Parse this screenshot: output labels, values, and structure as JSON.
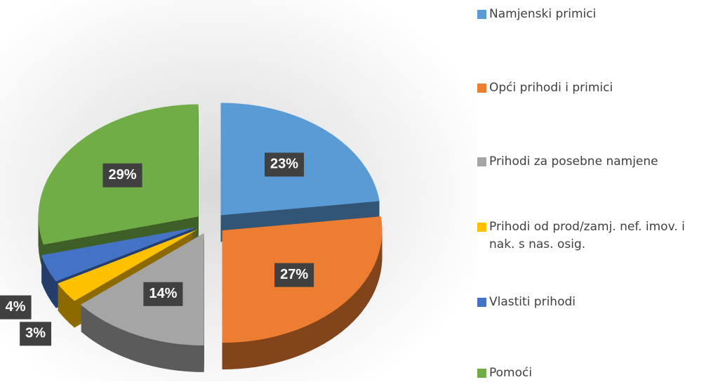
{
  "chart_data": {
    "type": "pie",
    "categories": [
      "Namjenski primici",
      "Opći prihodi i primici",
      "Prihodi za posebne namjene",
      "Prihodi od prod/zamj. nef. imov. i nak. s nas. osig.",
      "Vlastiti prihodi",
      "Pomoći"
    ],
    "values": [
      23,
      27,
      14,
      3,
      4,
      29
    ],
    "value_labels": [
      "23%",
      "27%",
      "14%",
      "3%",
      "4%",
      "29%"
    ],
    "colors": [
      "#5b9bd5",
      "#ed7d31",
      "#a5a5a5",
      "#ffc000",
      "#4472c4",
      "#70ad47"
    ],
    "legend": "right"
  }
}
